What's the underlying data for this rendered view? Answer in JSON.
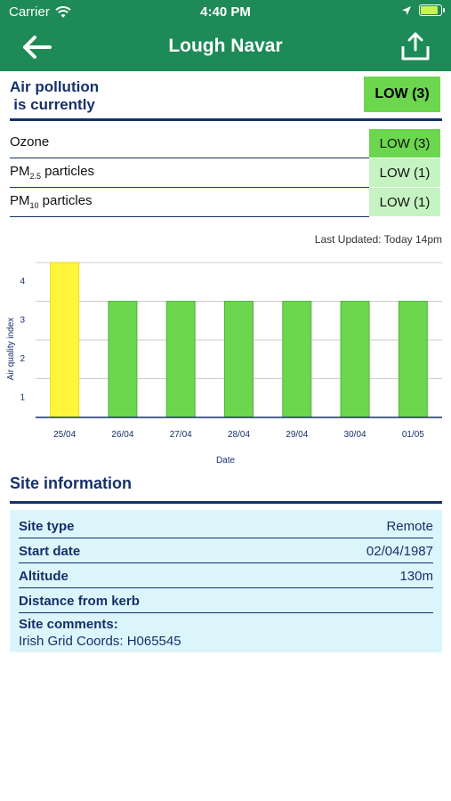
{
  "status_bar": {
    "carrier": "Carrier",
    "time": "4:40 PM",
    "battery_level": 0.85
  },
  "nav": {
    "title": "Lough Navar",
    "back_icon": "arrow-left-icon",
    "share_icon": "share-icon"
  },
  "air_pollution": {
    "title_line1": "Air pollution",
    "title_line2": "is currently",
    "overall": "LOW (3)",
    "overall_color": "#6cd64e"
  },
  "pollutants": [
    {
      "name": "Ozone",
      "sub": "",
      "band": "LOW (3)",
      "color": "#6cd64e"
    },
    {
      "name": "PM",
      "sub": "2.5",
      "suffix": " particles",
      "band": "LOW (1)",
      "color": "#c6f3c2"
    },
    {
      "name": "PM",
      "sub": "10",
      "suffix": " particles",
      "band": "LOW (1)",
      "color": "#c6f3c2"
    }
  ],
  "last_updated": "Last Updated: Today 14pm",
  "chart_data": {
    "type": "bar",
    "categories": [
      "25/04",
      "26/04",
      "27/04",
      "28/04",
      "29/04",
      "30/04",
      "01/05"
    ],
    "values": [
      4,
      3,
      3,
      3,
      3,
      3,
      3
    ],
    "colors": [
      "#fff63b",
      "#6cd64e",
      "#6cd64e",
      "#6cd64e",
      "#6cd64e",
      "#6cd64e",
      "#6cd64e"
    ],
    "xlabel": "Date",
    "ylabel": "Air quality index",
    "yticks": [
      1,
      2,
      3,
      4
    ],
    "ylim": [
      0,
      4
    ],
    "grid": true
  },
  "site_info": {
    "title": "Site information",
    "rows": [
      {
        "key": "Site type",
        "value": "Remote"
      },
      {
        "key": "Start date",
        "value": "02/04/1987"
      },
      {
        "key": "Altitude",
        "value": "130m"
      },
      {
        "key": "Distance from kerb",
        "value": ""
      }
    ],
    "comments_label": "Site comments:",
    "comments_value": "Irish Grid Coords: H065545"
  }
}
